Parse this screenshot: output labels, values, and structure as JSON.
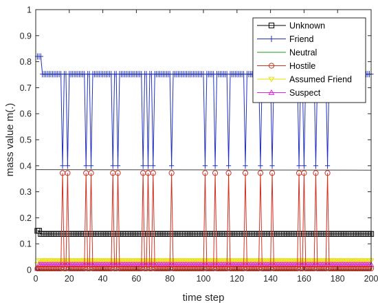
{
  "chart_data": {
    "type": "line",
    "title": "",
    "xlabel": "time step",
    "ylabel": "mass value m(.)",
    "xlim": [
      0,
      200
    ],
    "ylim": [
      0,
      1
    ],
    "xticks": [
      0,
      20,
      40,
      60,
      80,
      100,
      120,
      140,
      160,
      180,
      200
    ],
    "yticks": [
      0,
      0.1,
      0.2,
      0.3,
      0.4,
      0.5,
      0.6,
      0.7,
      0.8,
      0.9,
      1
    ],
    "xtick_labels": [
      "0",
      "20",
      "40",
      "60",
      "80",
      "100",
      "120",
      "140",
      "160",
      "180",
      "200"
    ],
    "ytick_labels": [
      "0",
      "0.1",
      "0.2",
      "0.3",
      "0.4",
      "0.5",
      "0.6",
      "0.7",
      "0.8",
      "0.9",
      "1"
    ],
    "legend_position": "top-right",
    "switch_times": [
      16,
      19,
      30,
      33,
      46,
      49,
      64,
      67,
      70,
      81,
      101,
      107,
      115,
      125,
      134,
      141,
      157,
      160,
      167,
      174
    ],
    "series": [
      {
        "name": "Unknown",
        "color": "#000000",
        "marker": "square",
        "start": [
          [
            1,
            0.15
          ],
          [
            2,
            0.15
          ]
        ],
        "base": 0.138,
        "switch": 0.138
      },
      {
        "name": "Friend",
        "color": "#1f2fbf",
        "marker": "plus",
        "start": [
          [
            1,
            0.82
          ],
          [
            2,
            0.82
          ],
          [
            3,
            0.82
          ]
        ],
        "base": 0.752,
        "switch": 0.4
      },
      {
        "name": "Neutral",
        "color": "#1a9c1a",
        "marker": "none",
        "start": [
          [
            1,
            0.0
          ]
        ],
        "base": 0.0,
        "switch": 0.0
      },
      {
        "name": "Hostile",
        "color": "#d03020",
        "marker": "circle",
        "start": [
          [
            1,
            0.005
          ]
        ],
        "base": 0.005,
        "switch": 0.372
      },
      {
        "name": "Assumed Friend",
        "color": "#e8e000",
        "marker": "triangle-down",
        "start": [
          [
            1,
            0.02
          ]
        ],
        "base": 0.035,
        "switch": 0.035
      },
      {
        "name": "Suspect",
        "color": "#e020e0",
        "marker": "triangle-up",
        "start": [
          [
            1,
            0.005
          ]
        ],
        "base": 0.02,
        "switch": 0.02
      }
    ],
    "reference_line": {
      "x": [
        0,
        200
      ],
      "y": [
        0.385,
        0.383
      ],
      "color": "#444444"
    }
  }
}
